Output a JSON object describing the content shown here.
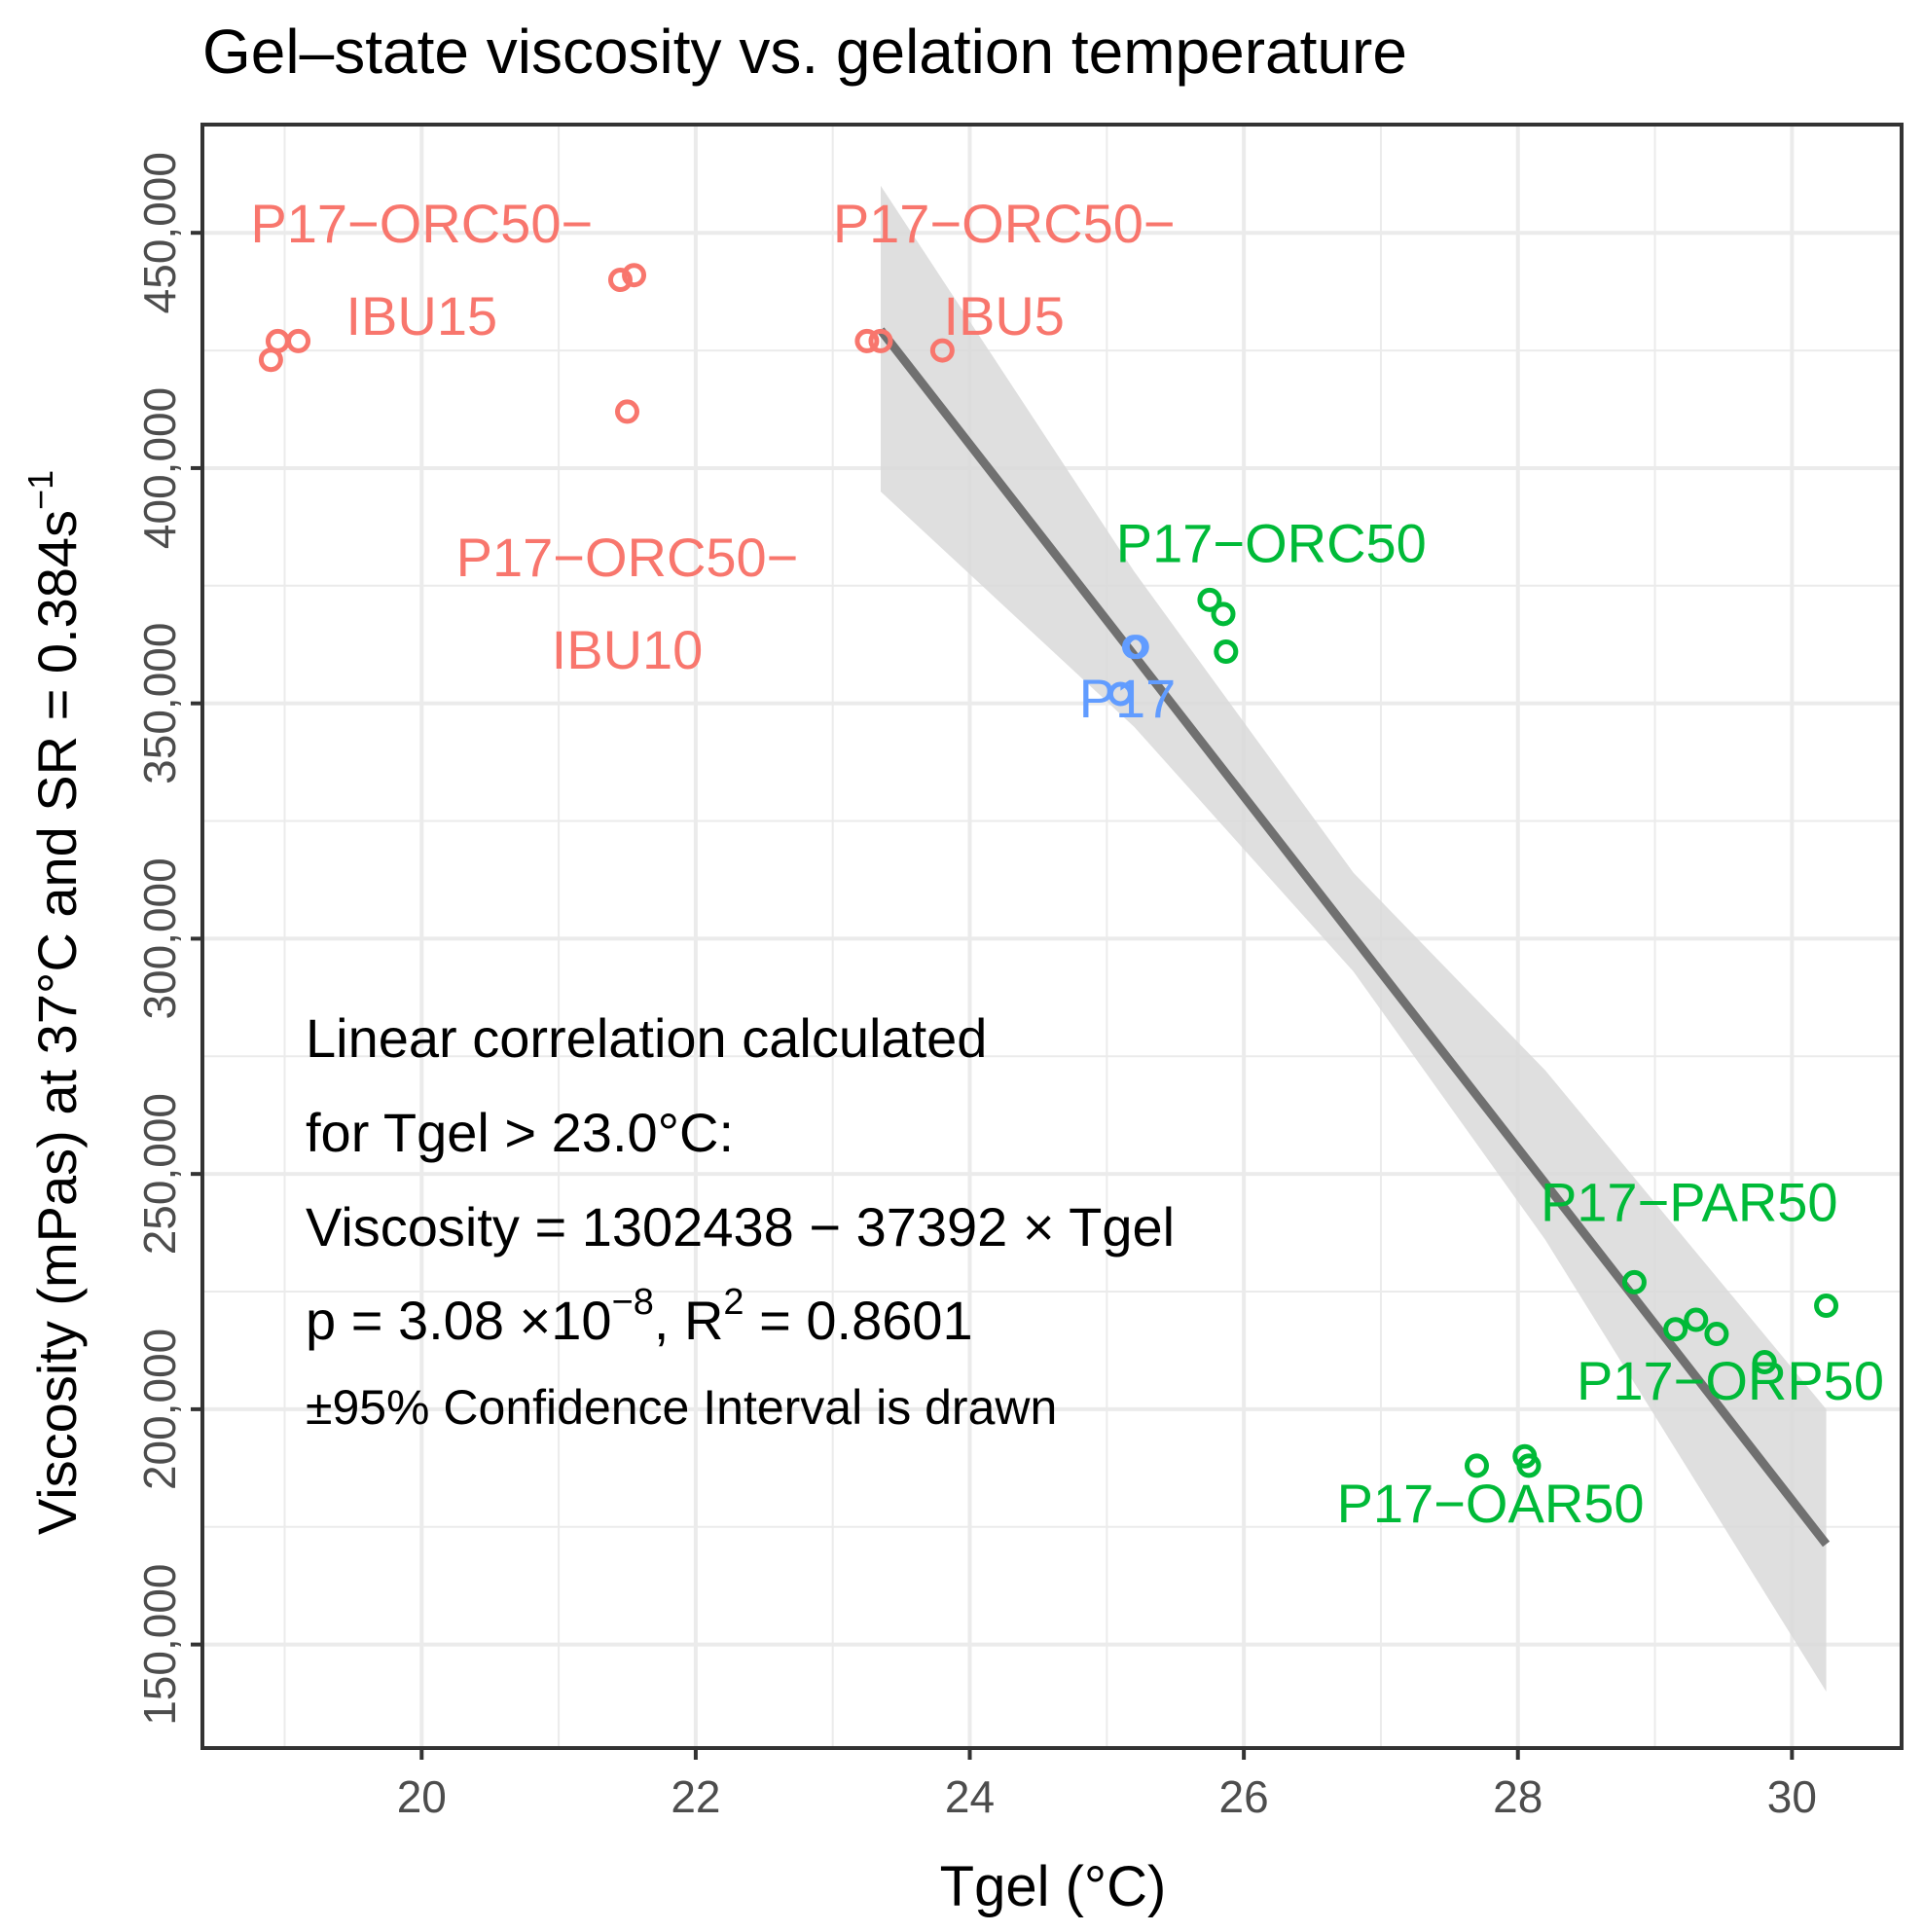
{
  "chart_data": {
    "type": "scatter",
    "title": "Gel–state viscosity vs. gelation temperature",
    "xlabel": "Tgel (°C)",
    "ylabel": {
      "main": "Viscosity (mPas) at 37°C and SR = 0.384s",
      "superscript": "−1"
    },
    "xlim": [
      18.4,
      30.8
    ],
    "ylim": [
      128000,
      473000
    ],
    "x_ticks": [
      20,
      22,
      24,
      26,
      28,
      30
    ],
    "x_tick_labels": [
      "20",
      "22",
      "24",
      "26",
      "28",
      "30"
    ],
    "y_ticks": [
      150000,
      200000,
      250000,
      300000,
      350000,
      400000,
      450000
    ],
    "y_tick_labels": [
      "150,000",
      "200,000",
      "250,000",
      "300,000",
      "350,000",
      "400,000",
      "450,000"
    ],
    "grid": true,
    "colors": {
      "red": "#F8766D",
      "green": "#00BA38",
      "blue": "#619CFF",
      "fit_line": "#707070",
      "confidence_band": "#D9D9D9",
      "grid": "#EBEBEB",
      "text": "#000000",
      "tick_text": "#4D4D4D"
    },
    "points": [
      {
        "x": 18.9,
        "y": 423000,
        "color": "red"
      },
      {
        "x": 18.95,
        "y": 427000,
        "color": "red"
      },
      {
        "x": 19.1,
        "y": 427000,
        "color": "red"
      },
      {
        "x": 21.45,
        "y": 440000,
        "color": "red"
      },
      {
        "x": 21.55,
        "y": 441000,
        "color": "red"
      },
      {
        "x": 21.5,
        "y": 412000,
        "color": "red"
      },
      {
        "x": 23.25,
        "y": 427000,
        "color": "red"
      },
      {
        "x": 23.35,
        "y": 427000,
        "color": "red"
      },
      {
        "x": 23.8,
        "y": 425000,
        "color": "red"
      },
      {
        "x": 25.1,
        "y": 352000,
        "color": "blue"
      },
      {
        "x": 25.2,
        "y": 362000,
        "color": "blue"
      },
      {
        "x": 25.22,
        "y": 362000,
        "color": "blue"
      },
      {
        "x": 25.75,
        "y": 372000,
        "color": "green"
      },
      {
        "x": 25.85,
        "y": 369000,
        "color": "green"
      },
      {
        "x": 25.87,
        "y": 361000,
        "color": "green"
      },
      {
        "x": 28.85,
        "y": 227000,
        "color": "green"
      },
      {
        "x": 30.25,
        "y": 222000,
        "color": "green"
      },
      {
        "x": 29.15,
        "y": 217000,
        "color": "green"
      },
      {
        "x": 29.3,
        "y": 219000,
        "color": "green"
      },
      {
        "x": 29.45,
        "y": 216000,
        "color": "green"
      },
      {
        "x": 29.8,
        "y": 210000,
        "color": "green"
      },
      {
        "x": 27.7,
        "y": 188000,
        "color": "green"
      },
      {
        "x": 28.05,
        "y": 190000,
        "color": "green"
      },
      {
        "x": 28.08,
        "y": 188000,
        "color": "green"
      }
    ],
    "point_labels": [
      {
        "lines": [
          "P17−ORC50−",
          "IBU15"
        ],
        "x": 20.0,
        "y": 448000,
        "color": "red"
      },
      {
        "lines": [
          "P17−ORC50−",
          "IBU5"
        ],
        "x": 24.25,
        "y": 448000,
        "color": "red"
      },
      {
        "lines": [
          "P17−ORC50−",
          "IBU10"
        ],
        "x": 21.5,
        "y": 377000,
        "color": "red"
      },
      {
        "lines": [
          "P17−ORC50"
        ],
        "x": 26.2,
        "y": 380000,
        "color": "green"
      },
      {
        "lines": [
          "P17"
        ],
        "x": 25.15,
        "y": 347000,
        "color": "blue"
      },
      {
        "lines": [
          "P17−PAR50"
        ],
        "x": 29.25,
        "y": 240000,
        "color": "green"
      },
      {
        "lines": [
          "P17−ORP50"
        ],
        "x": 29.55,
        "y": 202000,
        "color": "green"
      },
      {
        "lines": [
          "P17−OAR50"
        ],
        "x": 27.8,
        "y": 176000,
        "color": "green"
      }
    ],
    "fit": {
      "intercept": 1302438,
      "slope": -37392,
      "x_range": [
        23.35,
        30.25
      ],
      "ci": [
        {
          "x": 23.35,
          "lower": 395000,
          "upper": 460000
        },
        {
          "x": 25.2,
          "lower": 345000,
          "upper": 378000
        },
        {
          "x": 26.8,
          "lower": 293000,
          "upper": 314000
        },
        {
          "x": 28.2,
          "lower": 236000,
          "upper": 272000
        },
        {
          "x": 30.25,
          "lower": 140000,
          "upper": 200000
        }
      ]
    },
    "annotation": {
      "line1": "Linear correlation calculated",
      "line2": "for Tgel > 23.0°C:",
      "line3": "Viscosity = 1302438 − 37392 × Tgel",
      "line4_prefix": "p = 3.08 ×10",
      "line4_exp": "−8",
      "line4_mid": ", R",
      "line4_r2_exp": "2",
      "line4_suffix": " = 0.8601",
      "line5": "±95% Confidence Interval is drawn"
    }
  }
}
